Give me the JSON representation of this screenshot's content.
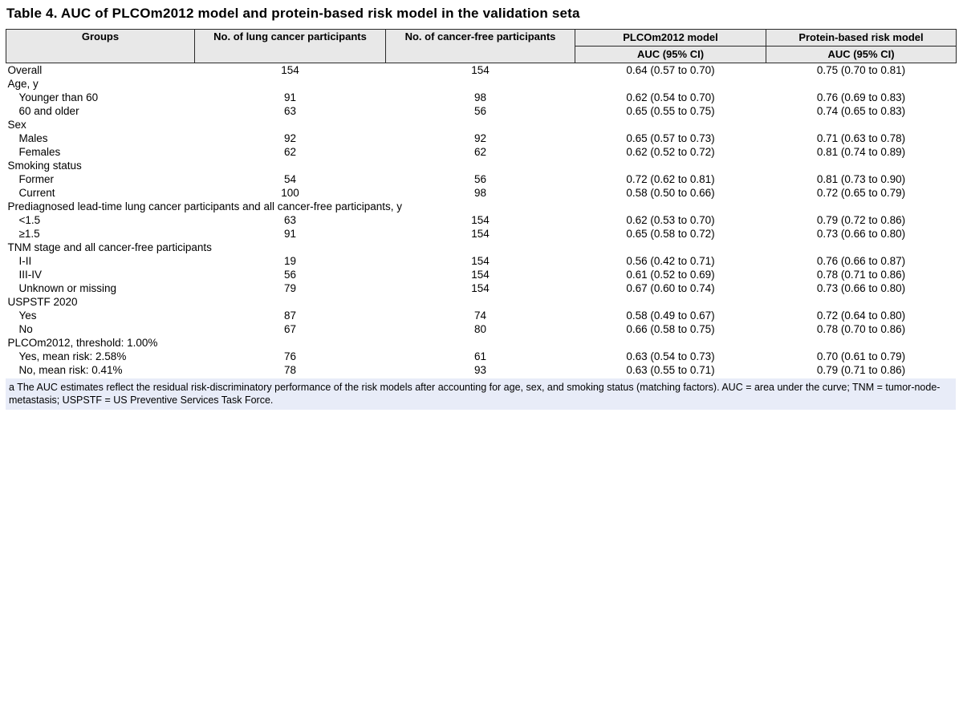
{
  "page": {
    "title": "Table 4. AUC of PLCOm2012 model and protein-based risk model in the validation set",
    "title_footnote_marker": "a"
  },
  "table": {
    "header": {
      "groups": "Groups",
      "lung": "No. of lung cancer participants",
      "cancer_free": "No. of cancer-free participants",
      "plco_model": "PLCOm2012 model",
      "protein_model": "Protein-based risk model",
      "plco_sub": "AUC (95% CI)",
      "protein_sub": "AUC (95% CI)"
    },
    "rows": [
      {
        "label": "Overall",
        "indent": false,
        "lung": "154",
        "free": "154",
        "plco": "0.64 (0.57 to 0.70)",
        "protein": "0.75 (0.70 to 0.81)"
      },
      {
        "label": "Age, y",
        "indent": false,
        "lung": "",
        "free": "",
        "plco": "",
        "protein": ""
      },
      {
        "label": "Younger than 60",
        "indent": true,
        "lung": "91",
        "free": "98",
        "plco": "0.62 (0.54 to 0.70)",
        "protein": "0.76 (0.69 to 0.83)"
      },
      {
        "label": "60 and older",
        "indent": true,
        "lung": "63",
        "free": "56",
        "plco": "0.65 (0.55 to 0.75)",
        "protein": "0.74 (0.65 to 0.83)"
      },
      {
        "label": "Sex",
        "indent": false,
        "lung": "",
        "free": "",
        "plco": "",
        "protein": ""
      },
      {
        "label": "Males",
        "indent": true,
        "lung": "92",
        "free": "92",
        "plco": "0.65 (0.57 to 0.73)",
        "protein": "0.71 (0.63 to 0.78)"
      },
      {
        "label": "Females",
        "indent": true,
        "lung": "62",
        "free": "62",
        "plco": "0.62 (0.52 to 0.72)",
        "protein": "0.81 (0.74 to 0.89)"
      },
      {
        "label": "Smoking status",
        "indent": false,
        "lung": "",
        "free": "",
        "plco": "",
        "protein": ""
      },
      {
        "label": "Former",
        "indent": true,
        "lung": "54",
        "free": "56",
        "plco": "0.72 (0.62 to 0.81)",
        "protein": "0.81 (0.73 to 0.90)"
      },
      {
        "label": "Current",
        "indent": true,
        "lung": "100",
        "free": "98",
        "plco": "0.58 (0.50 to 0.66)",
        "protein": "0.72 (0.65 to 0.79)"
      },
      {
        "label": "Prediagnosed lead-time lung cancer participants and all cancer-free participants, y",
        "indent": false,
        "lung": "",
        "free": "",
        "plco": "",
        "protein": ""
      },
      {
        "label": "<1.5",
        "indent": true,
        "lung": "63",
        "free": "154",
        "plco": "0.62 (0.53 to 0.70)",
        "protein": "0.79 (0.72 to 0.86)"
      },
      {
        "label": "≥1.5",
        "indent": true,
        "lung": "91",
        "free": "154",
        "plco": "0.65 (0.58 to 0.72)",
        "protein": "0.73 (0.66 to 0.80)"
      },
      {
        "label": "TNM stage and all cancer-free participants",
        "indent": false,
        "lung": "",
        "free": "",
        "plco": "",
        "protein": ""
      },
      {
        "label": "I-II",
        "indent": true,
        "lung": "19",
        "free": "154",
        "plco": "0.56 (0.42 to 0.71)",
        "protein": "0.76 (0.66 to 0.87)"
      },
      {
        "label": "III-IV",
        "indent": true,
        "lung": "56",
        "free": "154",
        "plco": "0.61 (0.52 to 0.69)",
        "protein": "0.78 (0.71 to 0.86)"
      },
      {
        "label": "Unknown or missing",
        "indent": true,
        "lung": "79",
        "free": "154",
        "plco": "0.67 (0.60 to 0.74)",
        "protein": "0.73 (0.66 to 0.80)"
      },
      {
        "label": "USPSTF 2020",
        "indent": false,
        "lung": "",
        "free": "",
        "plco": "",
        "protein": ""
      },
      {
        "label": "Yes",
        "indent": true,
        "lung": "87",
        "free": "74",
        "plco": "0.58 (0.49 to 0.67)",
        "protein": "0.72 (0.64 to 0.80)"
      },
      {
        "label": "No",
        "indent": true,
        "lung": "67",
        "free": "80",
        "plco": "0.66 (0.58 to 0.75)",
        "protein": "0.78 (0.70 to 0.86)"
      },
      {
        "label": "PLCOm2012, threshold: 1.00%",
        "indent": false,
        "lung": "",
        "free": "",
        "plco": "",
        "protein": ""
      },
      {
        "label": "Yes, mean risk: 2.58%",
        "indent": true,
        "lung": "76",
        "free": "61",
        "plco": "0.63 (0.54 to 0.73)",
        "protein": "0.70 (0.61 to 0.79)"
      },
      {
        "label": "No, mean risk: 0.41%",
        "indent": true,
        "lung": "78",
        "free": "93",
        "plco": "0.63 (0.55 to 0.71)",
        "protein": "0.79 (0.71 to 0.86)"
      }
    ]
  },
  "footnote": {
    "text": "a The AUC estimates reflect the residual risk-discriminatory performance of the risk models after accounting for age, sex, and smoking status (matching factors). AUC = area under the curve; TNM = tumor-node-metastasis; USPSTF = US Preventive Services Task Force."
  },
  "colors": {
    "header_bg": "#e8e8e8",
    "footnote_bg": "#e8ecf8",
    "border": "#2a2a2a"
  }
}
